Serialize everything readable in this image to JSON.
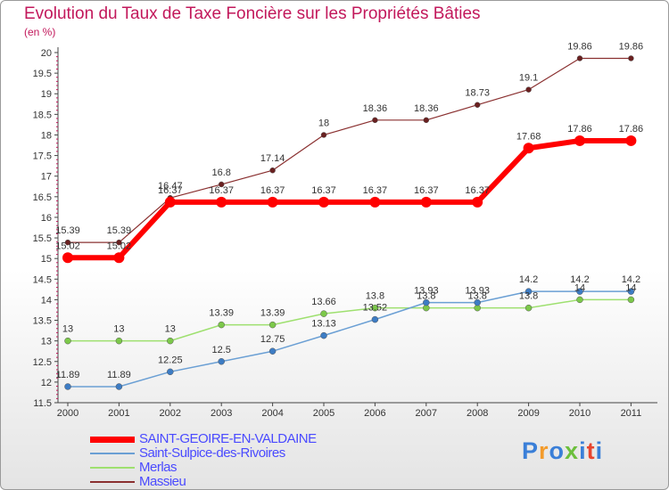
{
  "title": "Evolution du Taux de Taxe Foncière sur les Propriétés Bâties",
  "unit": "(en %)",
  "logo": {
    "text": "Proxiti",
    "colors": [
      "#3a7fd8",
      "#f39b2b",
      "#3a7fd8",
      "#6cbf3c",
      "#3a7fd8",
      "#e8452e",
      "#3a7fd8"
    ]
  },
  "chart_data": {
    "type": "line",
    "x": [
      "2000",
      "2001",
      "2002",
      "2003",
      "2004",
      "2005",
      "2006",
      "2007",
      "2008",
      "2009",
      "2010",
      "2011"
    ],
    "ylim": [
      11.5,
      20
    ],
    "yticks": [
      "11.5",
      "12",
      "12.5",
      "13",
      "13.5",
      "14",
      "14.5",
      "15",
      "15.5",
      "16",
      "16.5",
      "17",
      "17.5",
      "18",
      "18.5",
      "19",
      "19.5",
      "20"
    ],
    "grid": false,
    "legend_position": "bottom-left",
    "series": [
      {
        "name": "SAINT-GEOIRE-EN-VALDAINE",
        "color": "#ff0000",
        "marker": "#ff0000",
        "width": 6,
        "radius": 6,
        "values": [
          15.02,
          15.02,
          16.37,
          16.37,
          16.37,
          16.37,
          16.37,
          16.37,
          16.37,
          17.68,
          17.86,
          17.86
        ],
        "labels": [
          "15.02",
          "15.02",
          "16.37",
          "16.37",
          "16.37",
          "16.37",
          "16.37",
          "16.37",
          "16.37",
          "17.68",
          "17.86",
          "17.86"
        ]
      },
      {
        "name": "Saint-Sulpice-des-Rivoires",
        "color": "#6a9fd4",
        "marker": "#3d7cc4",
        "width": 1.5,
        "radius": 3.5,
        "values": [
          11.89,
          11.89,
          12.25,
          12.5,
          12.75,
          13.13,
          13.52,
          13.93,
          13.93,
          14.2,
          14.2,
          14.2
        ],
        "labels": [
          "11.89",
          "11.89",
          "12.25",
          "12.5",
          "12.75",
          "13.13",
          "13.52",
          "13.93",
          "13.93",
          "14.2",
          "14.2",
          "14.2"
        ]
      },
      {
        "name": "Merlas",
        "color": "#9ee06f",
        "marker": "#7cc84a",
        "width": 1.5,
        "radius": 3.5,
        "values": [
          13,
          13,
          13,
          13.39,
          13.39,
          13.66,
          13.8,
          13.8,
          13.8,
          13.8,
          14,
          14
        ],
        "labels": [
          "13",
          "13",
          "13",
          "13.39",
          "13.39",
          "13.66",
          "13.8",
          "13.8",
          "13.8",
          "13.8",
          "14",
          "14"
        ]
      },
      {
        "name": "Massieu",
        "color": "#8a3030",
        "marker": "#6a2020",
        "width": 1.2,
        "radius": 3,
        "values": [
          15.39,
          15.39,
          16.47,
          16.8,
          17.14,
          18,
          18.36,
          18.36,
          18.73,
          19.1,
          19.86,
          19.86
        ],
        "labels": [
          "15.39",
          "15.39",
          "16.47",
          "16.8",
          "17.14",
          "18",
          "18.36",
          "18.36",
          "18.73",
          "19.1",
          "19.86",
          "19.86"
        ]
      }
    ]
  }
}
